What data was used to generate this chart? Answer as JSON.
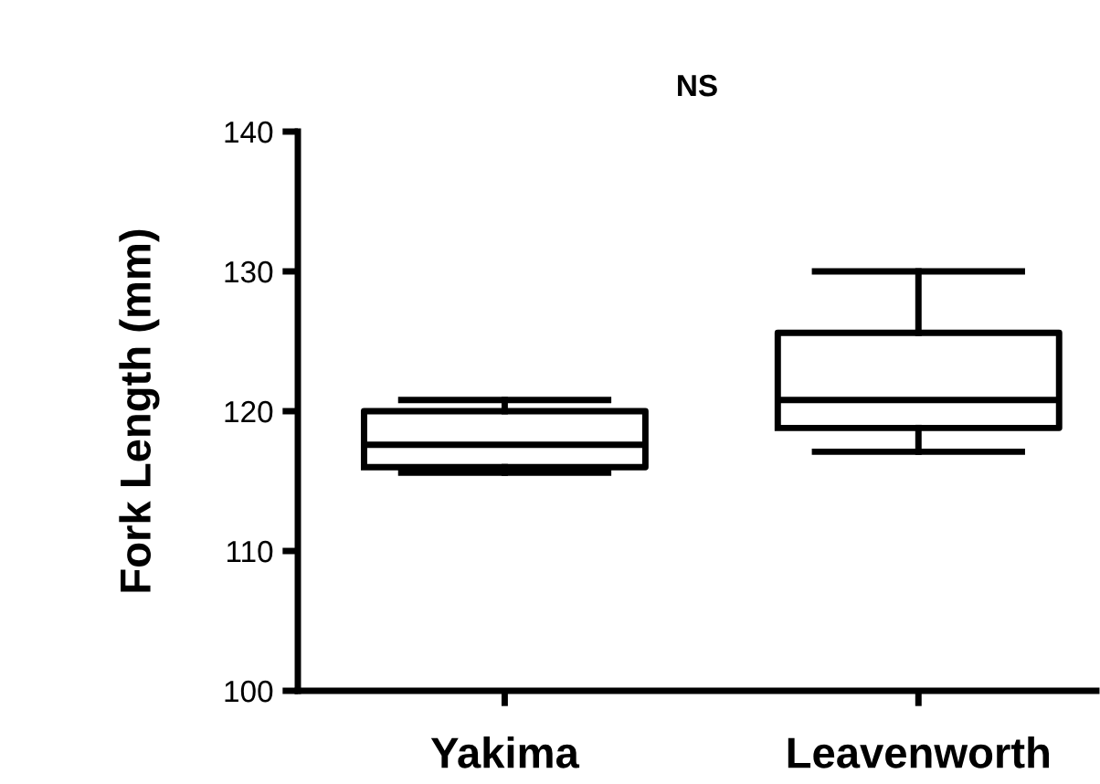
{
  "chart_data": {
    "type": "box",
    "title": "NS",
    "ylabel": "Fork Length (mm)",
    "categories": [
      "Yakima",
      "Leavenworth"
    ],
    "boxes": [
      {
        "low": 115.6,
        "q1": 116.0,
        "median": 117.6,
        "q3": 120.0,
        "high": 120.8
      },
      {
        "low": 117.1,
        "q1": 118.8,
        "median": 120.8,
        "q3": 125.6,
        "high": 130.0
      }
    ],
    "color": "#000000",
    "ylim": [
      100,
      140
    ],
    "yticks": [
      100,
      110,
      120,
      130,
      140
    ],
    "grid": false
  }
}
